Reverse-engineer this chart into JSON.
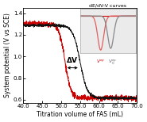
{
  "xlim": [
    40.0,
    70.0
  ],
  "ylim": [
    0.57,
    1.45
  ],
  "xlabel": "Titration volume of FAS (mL)",
  "ylabel": "System potential (V vs SCE)",
  "xticks": [
    40.0,
    45.0,
    50.0,
    55.0,
    60.0,
    65.0,
    70.0
  ],
  "xtick_labels": [
    "40.0",
    "45.0",
    "50.0",
    "55.0",
    "60.0",
    "65.0",
    "70.0"
  ],
  "yticks": [
    0.6,
    0.8,
    1.0,
    1.2,
    1.4
  ],
  "ytick_labels": [
    "0.6",
    "0.8",
    "1.0",
    "1.2",
    "1.4"
  ],
  "black_ep": 55.0,
  "red_ep": 51.0,
  "red_color": "#cc0000",
  "black_color": "#111111",
  "inset_title": "dE/dV-V curves",
  "delta_v_label": "ΔV",
  "bg_color": "#f0f0f0",
  "inset_bg": "#ebebeb"
}
